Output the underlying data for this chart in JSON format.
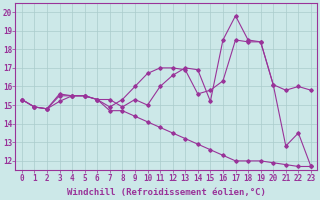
{
  "background_color": "#cce8e8",
  "line_color": "#993399",
  "grid_color": "#aacccc",
  "xlabel": "Windchill (Refroidissement éolien,°C)",
  "xlabel_fontsize": 6.5,
  "xtick_fontsize": 5.5,
  "ytick_fontsize": 5.5,
  "xlim": [
    -0.5,
    23.5
  ],
  "ylim": [
    11.5,
    20.5
  ],
  "yticks": [
    12,
    13,
    14,
    15,
    16,
    17,
    18,
    19,
    20
  ],
  "xticks": [
    0,
    1,
    2,
    3,
    4,
    5,
    6,
    7,
    8,
    9,
    10,
    11,
    12,
    13,
    14,
    15,
    16,
    17,
    18,
    19,
    20,
    21,
    22,
    23
  ],
  "line1_x": [
    0,
    1,
    2,
    3,
    4,
    5,
    6,
    7,
    8,
    9,
    10,
    11,
    12,
    13,
    14,
    15,
    16,
    17,
    18,
    19,
    20,
    21,
    22,
    23
  ],
  "line1_y": [
    15.3,
    14.9,
    14.8,
    15.6,
    15.5,
    15.5,
    15.3,
    15.3,
    14.9,
    15.3,
    15.0,
    16.0,
    16.6,
    17.0,
    16.9,
    15.2,
    18.5,
    19.8,
    18.5,
    18.4,
    16.1,
    12.8,
    13.5,
    11.7
  ],
  "line2_x": [
    0,
    1,
    2,
    3,
    4,
    5,
    6,
    7,
    8,
    9,
    10,
    11,
    12,
    13,
    14,
    15,
    16,
    17,
    18,
    19,
    20,
    21,
    22,
    23
  ],
  "line2_y": [
    15.3,
    14.9,
    14.8,
    15.2,
    15.5,
    15.5,
    15.3,
    14.9,
    15.3,
    16.0,
    16.7,
    17.0,
    17.0,
    16.9,
    15.6,
    15.8,
    16.3,
    18.5,
    18.4,
    18.4,
    16.1,
    15.8,
    16.0,
    15.8
  ],
  "line3_x": [
    0,
    1,
    2,
    3,
    4,
    5,
    6,
    7,
    8,
    9,
    10,
    11,
    12,
    13,
    14,
    15,
    16,
    17,
    18,
    19,
    20,
    21,
    22,
    23
  ],
  "line3_y": [
    15.3,
    14.9,
    14.8,
    15.5,
    15.5,
    15.5,
    15.3,
    14.7,
    14.7,
    14.4,
    14.1,
    13.8,
    13.5,
    13.2,
    12.9,
    12.6,
    12.3,
    12.0,
    12.0,
    12.0,
    11.9,
    11.8,
    11.7,
    11.7
  ],
  "marker": "D",
  "markersize": 1.8,
  "linewidth": 0.8
}
